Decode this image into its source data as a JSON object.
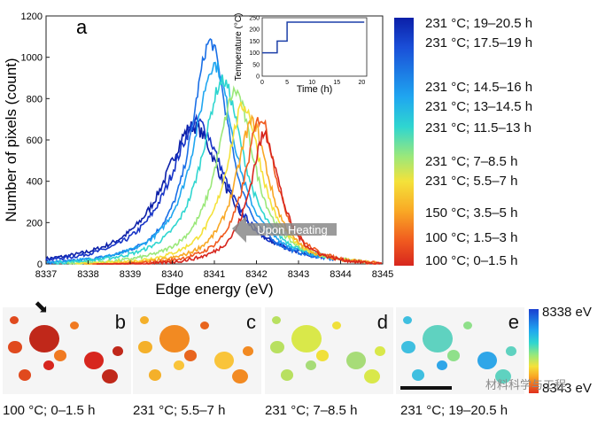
{
  "chart_data": [
    {
      "type": "line",
      "panel_label": "a",
      "xlabel": "Edge energy (eV)",
      "ylabel": "Number of pixels (count)",
      "xlim": [
        8337,
        8345
      ],
      "ylim": [
        0,
        1200
      ],
      "x_ticks": [
        "8337",
        "8338",
        "8339",
        "8340",
        "8341",
        "8342",
        "8343",
        "8344",
        "8345"
      ],
      "y_ticks": [
        "0",
        "200",
        "400",
        "600",
        "800",
        "1000",
        "1200"
      ],
      "annotation": "Upon Heating",
      "series": [
        {
          "name": "231 °C; 19–20.5 h",
          "color": "#0b1fa8",
          "peak_x": 8340.5,
          "peak_y": 680,
          "width": 1.6
        },
        {
          "name": "231 °C; 17.5–19 h",
          "color": "#1633c6",
          "peak_x": 8340.6,
          "peak_y": 700,
          "width": 1.5
        },
        {
          "name": "231 °C; 14.5–16 h",
          "color": "#1a6fe6",
          "peak_x": 8340.9,
          "peak_y": 1090,
          "width": 1.0
        },
        {
          "name": "231 °C; 13–14.5 h",
          "color": "#1fa6f0",
          "peak_x": 8341.0,
          "peak_y": 980,
          "width": 1.1
        },
        {
          "name": "231 °C; 11.5–13 h",
          "color": "#2fd6d0",
          "peak_x": 8341.2,
          "peak_y": 900,
          "width": 1.1
        },
        {
          "name": "231 °C; 7–8.5 h",
          "color": "#9be87a",
          "peak_x": 8341.5,
          "peak_y": 850,
          "width": 1.0
        },
        {
          "name": "231 °C; 5.5–7 h",
          "color": "#f4e23a",
          "peak_x": 8341.7,
          "peak_y": 780,
          "width": 0.95
        },
        {
          "name": "150 °C; 3.5–5 h",
          "color": "#f9a825",
          "peak_x": 8341.9,
          "peak_y": 700,
          "width": 0.9
        },
        {
          "name": "100 °C; 1.5–3 h",
          "color": "#f05a1f",
          "peak_x": 8342.1,
          "peak_y": 720,
          "width": 0.85
        },
        {
          "name": "100 °C; 0–1.5 h",
          "color": "#d7261e",
          "peak_x": 8342.2,
          "peak_y": 640,
          "width": 0.8
        }
      ]
    },
    {
      "type": "line",
      "role": "inset",
      "xlabel": "Time (h)",
      "ylabel": "Temperature (°C)",
      "xlim": [
        0,
        21
      ],
      "ylim": [
        0,
        250
      ],
      "x_ticks": [
        "0",
        "5",
        "10",
        "15",
        "20"
      ],
      "y_ticks": [
        "0",
        "50",
        "100",
        "150",
        "200",
        "250"
      ],
      "x": [
        0,
        3,
        3,
        5,
        5,
        20.5
      ],
      "y": [
        100,
        100,
        150,
        150,
        231,
        231
      ]
    }
  ],
  "panels": [
    {
      "letter": "b",
      "caption": "100 °C; 0–1.5 h",
      "colors": [
        "#c0281a",
        "#e04a1e",
        "#f07a22",
        "#d7261e"
      ]
    },
    {
      "letter": "c",
      "caption": "231 °C; 5.5–7 h",
      "colors": [
        "#f28a22",
        "#f4b02a",
        "#e8651e",
        "#f9c43a"
      ]
    },
    {
      "letter": "d",
      "caption": "231 °C; 7–8.5 h",
      "colors": [
        "#d9e84a",
        "#b8e060",
        "#f0e03a",
        "#a7dc78"
      ]
    },
    {
      "letter": "e",
      "caption": "231 °C; 19–20.5 h",
      "colors": [
        "#5fd2c0",
        "#3fbfe0",
        "#8fe08a",
        "#2fa6e8"
      ]
    }
  ],
  "map_colorbar": {
    "top": "8338 eV",
    "bottom": "8343 eV"
  },
  "watermark": "材料科学与工程"
}
